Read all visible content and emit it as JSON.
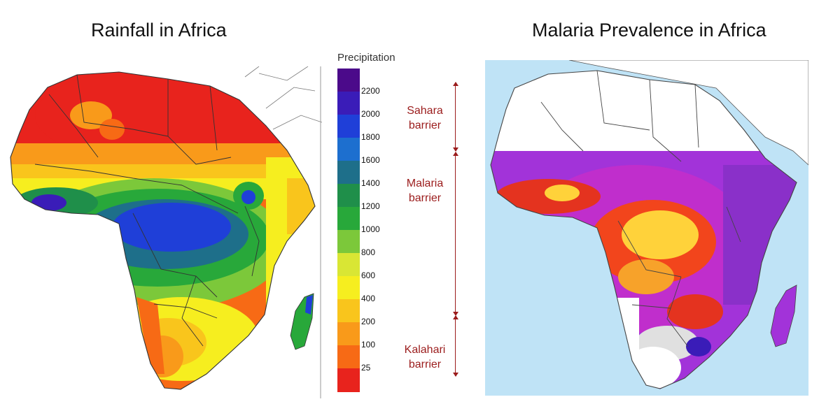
{
  "titles": {
    "left": "Rainfall in Africa",
    "right": "Malaria Prevalence in Africa"
  },
  "legend": {
    "title": "Precipitation",
    "ticks": [
      "2200",
      "2000",
      "1800",
      "1600",
      "1400",
      "1200",
      "1000",
      "800",
      "600",
      "400",
      "200",
      "100",
      "25"
    ],
    "colors": [
      "#4b0a8a",
      "#3a1cb8",
      "#1f3fd8",
      "#1d6fcf",
      "#1e6f8a",
      "#1f8f4a",
      "#28a83a",
      "#7cc83a",
      "#d9e634",
      "#f6ee1f",
      "#f9c51c",
      "#f99a1a",
      "#f76a15",
      "#e8231d"
    ]
  },
  "barriers": [
    {
      "label_line1": "Sahara",
      "label_line2": "barrier"
    },
    {
      "label_line1": "Malaria",
      "label_line2": "barrier"
    },
    {
      "label_line1": "Kalahari",
      "label_line2": "barrier"
    }
  ]
}
